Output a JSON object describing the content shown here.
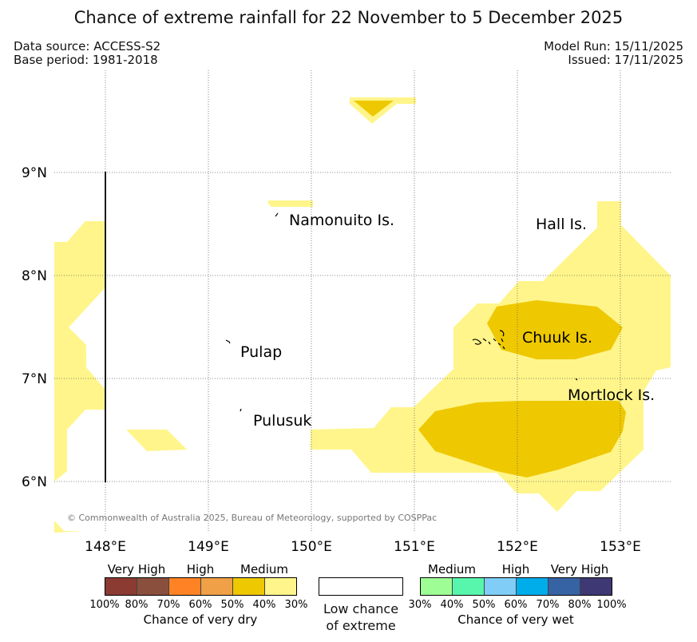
{
  "title": "Chance of extreme rainfall for 22 November to 5 December 2025",
  "data_source": "Data source: ACCESS-S2",
  "base_period": "Base period: 1981-2018",
  "model_run": "Model Run: 15/11/2025",
  "issued": "Issued: 17/11/2025",
  "longitudes": [
    "148°E",
    "149°E",
    "150°E",
    "151°E",
    "152°E",
    "153°E"
  ],
  "latitudes": [
    "9°N",
    "8°N",
    "7°N",
    "6°N"
  ],
  "places": {
    "namonuito": "Namonuito Is.",
    "hall": "Hall Is.",
    "pulap": "Pulap",
    "chuuk": "Chuuk Is.",
    "mortlock": "Mortlock Is.",
    "pulusuk": "Pulusuk"
  },
  "copyright": "© Commonwealth of Australia 2025, Bureau of Meteorology, supported by COSPPac",
  "legend": {
    "dry": {
      "headers": [
        "Very High",
        "High",
        "Medium"
      ],
      "ticks": [
        "100%",
        "80%",
        "70%",
        "60%",
        "50%",
        "40%",
        "30%"
      ],
      "colors": [
        "#8c3b32",
        "#8b4f3d",
        "#ff8325",
        "#f0a046",
        "#eec800",
        "#fff58a"
      ],
      "caption": "Chance of very dry"
    },
    "low": {
      "caption_line1": "Low chance",
      "caption_line2": "of extreme"
    },
    "wet": {
      "headers": [
        "Medium",
        "High",
        "Very High"
      ],
      "ticks": [
        "30%",
        "40%",
        "50%",
        "60%",
        "70%",
        "80%",
        "100%"
      ],
      "colors": [
        "#9ffd95",
        "#58f6ad",
        "#80cdf8",
        "#00adeb",
        "#3663a3",
        "#3e3874"
      ],
      "caption": "Chance of very wet"
    }
  },
  "colors": {
    "medium_30_40": "#fff58a",
    "medium_40_50": "#eec800"
  }
}
